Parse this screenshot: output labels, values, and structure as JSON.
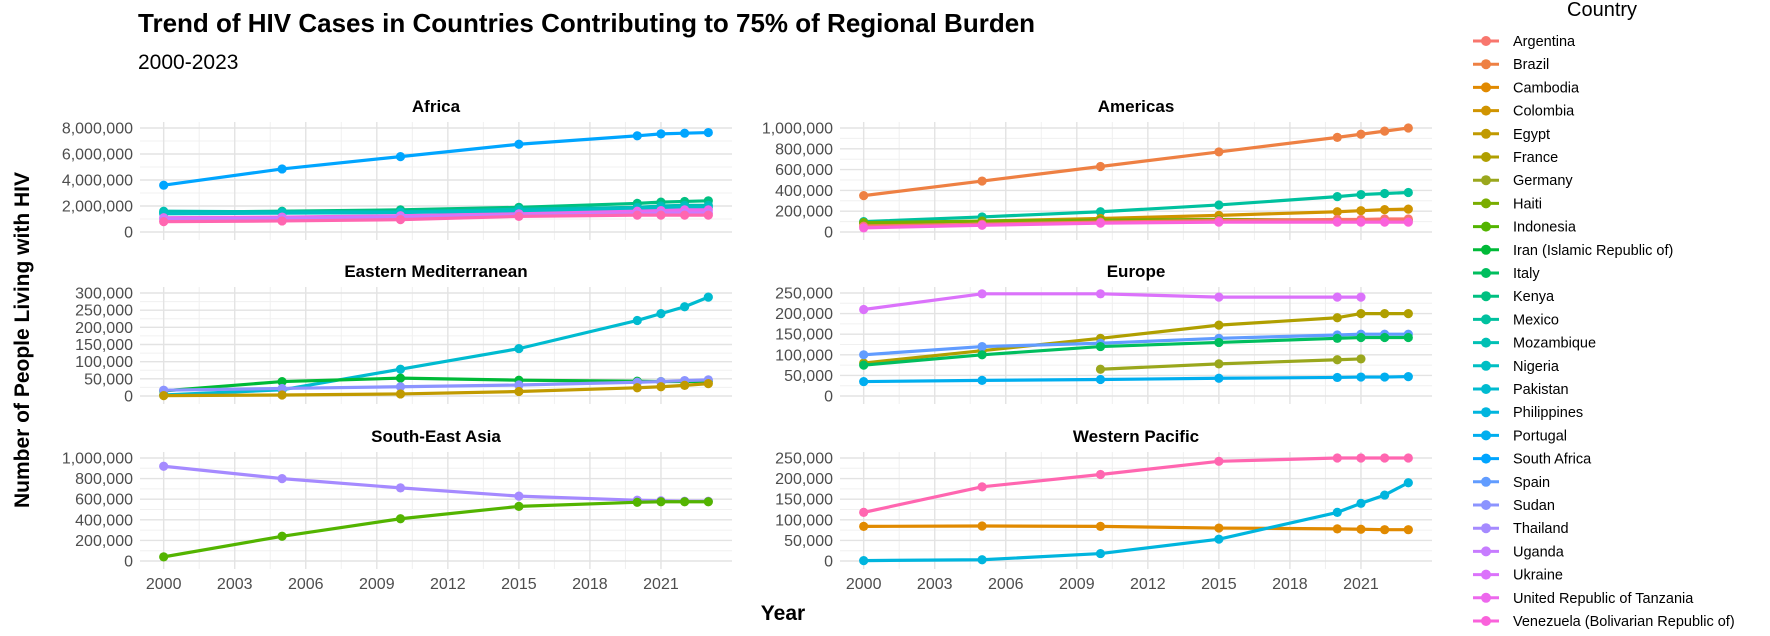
{
  "chart_data": {
    "type": "line",
    "title": "Trend of HIV Cases in Countries Contributing to 75% of Regional Burden",
    "subtitle": "2000-2023",
    "xlabel": "Year",
    "ylabel": "Number of People Living with HIV",
    "x_ticks": [
      2000,
      2003,
      2006,
      2009,
      2012,
      2015,
      2018,
      2021
    ],
    "legend": {
      "title": "Country",
      "placement": "right",
      "entries": [
        {
          "name": "Argentina",
          "color": "#F8766D"
        },
        {
          "name": "Brazil",
          "color": "#EE8043"
        },
        {
          "name": "Cambodia",
          "color": "#E18A00"
        },
        {
          "name": "Colombia",
          "color": "#D09400"
        },
        {
          "name": "Egypt",
          "color": "#C19A00"
        },
        {
          "name": "France",
          "color": "#B09F00"
        },
        {
          "name": "Germany",
          "color": "#9AA71D"
        },
        {
          "name": "Haiti",
          "color": "#7AAD00"
        },
        {
          "name": "Indonesia",
          "color": "#53B400"
        },
        {
          "name": "Iran (Islamic Republic of)",
          "color": "#00BA38"
        },
        {
          "name": "Italy",
          "color": "#00BE5E"
        },
        {
          "name": "Kenya",
          "color": "#00C081"
        },
        {
          "name": "Mexico",
          "color": "#00C19F"
        },
        {
          "name": "Mozambique",
          "color": "#00C0B4"
        },
        {
          "name": "Nigeria",
          "color": "#00BFC4"
        },
        {
          "name": "Pakistan",
          "color": "#00BBD0"
        },
        {
          "name": "Philippines",
          "color": "#00B5DE"
        },
        {
          "name": "Portugal",
          "color": "#00AEEF"
        },
        {
          "name": "South Africa",
          "color": "#00A5FF"
        },
        {
          "name": "Spain",
          "color": "#619CFF"
        },
        {
          "name": "Sudan",
          "color": "#8C94FF"
        },
        {
          "name": "Thailand",
          "color": "#A58AFF"
        },
        {
          "name": "Uganda",
          "color": "#C77CFF"
        },
        {
          "name": "Ukraine",
          "color": "#DB72FB"
        },
        {
          "name": "United Republic of Tanzania",
          "color": "#ED68ED"
        },
        {
          "name": "Venezuela (Bolivarian Republic of)",
          "color": "#FA62DB"
        }
      ]
    },
    "panels": [
      {
        "name": "Africa",
        "ylim": [
          0,
          8000000
        ],
        "y_ticks": [
          0,
          2000000,
          4000000,
          6000000,
          8000000
        ],
        "y_tick_labels": [
          "0",
          "2,000,000",
          "4,000,000",
          "6,000,000",
          "8,000,000"
        ],
        "series": [
          {
            "color": "#00A5FF",
            "x": [
              2000,
              2005,
              2010,
              2015,
              2020,
              2021,
              2022,
              2023
            ],
            "y": [
              3600000,
              4850000,
              5800000,
              6750000,
              7400000,
              7550000,
              7600000,
              7650000
            ]
          },
          {
            "color": "#00C081",
            "x": [
              2000,
              2005,
              2010,
              2015,
              2020,
              2021,
              2022,
              2023
            ],
            "y": [
              1500000,
              1600000,
              1700000,
              1900000,
              2200000,
              2300000,
              2350000,
              2400000
            ]
          },
          {
            "color": "#00C0B4",
            "x": [
              2000,
              2005,
              2010,
              2015,
              2020,
              2021,
              2022,
              2023
            ],
            "y": [
              1600000,
              1550000,
              1550000,
              1750000,
              1900000,
              2000000,
              2050000,
              2050000
            ]
          },
          {
            "color": "#00BFC4",
            "x": [
              2000,
              2005,
              2010,
              2015,
              2020,
              2021,
              2022,
              2023
            ],
            "y": [
              1400000,
              1450000,
              1500000,
              1600000,
              1800000,
              1850000,
              1900000,
              1900000
            ]
          },
          {
            "color": "#ED68ED",
            "x": [
              2000,
              2005,
              2010,
              2015,
              2020,
              2021,
              2022,
              2023
            ],
            "y": [
              1100000,
              1150000,
              1250000,
              1400000,
              1600000,
              1650000,
              1700000,
              1700000
            ]
          },
          {
            "color": "#C77CFF",
            "x": [
              2000,
              2005,
              2010,
              2015,
              2020,
              2021,
              2022,
              2023
            ],
            "y": [
              1000000,
              1050000,
              1150000,
              1300000,
              1400000,
              1450000,
              1450000,
              1450000
            ]
          },
          {
            "color": "#FF66B0",
            "x": [
              2000,
              2005,
              2010,
              2015,
              2020,
              2021,
              2022,
              2023
            ],
            "y": [
              800000,
              850000,
              950000,
              1200000,
              1300000,
              1300000,
              1300000,
              1300000
            ]
          }
        ]
      },
      {
        "name": "Americas",
        "ylim": [
          0,
          1000000
        ],
        "y_ticks": [
          0,
          200000,
          400000,
          600000,
          800000,
          1000000
        ],
        "y_tick_labels": [
          "0",
          "200,000",
          "400,000",
          "600,000",
          "800,000",
          "1,000,000"
        ],
        "series": [
          {
            "color": "#EE8043",
            "x": [
              2000,
              2005,
              2010,
              2015,
              2020,
              2021,
              2022,
              2023
            ],
            "y": [
              350000,
              490000,
              630000,
              770000,
              910000,
              940000,
              970000,
              1000000
            ]
          },
          {
            "color": "#00C19F",
            "x": [
              2000,
              2005,
              2010,
              2015,
              2020,
              2021,
              2022,
              2023
            ],
            "y": [
              100000,
              145000,
              195000,
              260000,
              340000,
              360000,
              370000,
              380000
            ]
          },
          {
            "color": "#D09400",
            "x": [
              2000,
              2005,
              2010,
              2015,
              2020,
              2021,
              2022,
              2023
            ],
            "y": [
              80000,
              105000,
              130000,
              160000,
              195000,
              205000,
              215000,
              220000
            ]
          },
          {
            "color": "#7AAD00",
            "x": [
              2000,
              2005,
              2010,
              2015,
              2020,
              2021,
              2022,
              2023
            ],
            "y": [
              90000,
              105000,
              115000,
              120000,
              115000,
              115000,
              115000,
              115000
            ]
          },
          {
            "color": "#F8766D",
            "x": [
              2000,
              2005,
              2010,
              2015,
              2020,
              2021,
              2022,
              2023
            ],
            "y": [
              55000,
              75000,
              95000,
              110000,
              120000,
              120000,
              125000,
              125000
            ]
          },
          {
            "color": "#FA62DB",
            "x": [
              2000,
              2005,
              2010,
              2015,
              2020,
              2021,
              2022,
              2023
            ],
            "y": [
              40000,
              65000,
              85000,
              95000,
              95000,
              95000,
              95000,
              95000
            ]
          }
        ]
      },
      {
        "name": "Eastern Mediterranean",
        "ylim": [
          0,
          300000
        ],
        "y_ticks": [
          0,
          50000,
          100000,
          150000,
          200000,
          250000,
          300000
        ],
        "y_tick_labels": [
          "0",
          "50,000",
          "100,000",
          "150,000",
          "200,000",
          "250,000",
          "300,000"
        ],
        "series": [
          {
            "color": "#00BBD0",
            "x": [
              2000,
              2005,
              2010,
              2015,
              2020,
              2021,
              2022,
              2023
            ],
            "y": [
              3000,
              18000,
              78000,
              138000,
              220000,
              240000,
              260000,
              288000
            ]
          },
          {
            "color": "#00BA38",
            "x": [
              2000,
              2005,
              2010,
              2015,
              2020,
              2021,
              2022,
              2023
            ],
            "y": [
              15000,
              42000,
              52000,
              46000,
              43000,
              42000,
              42000,
              43000
            ]
          },
          {
            "color": "#8C94FF",
            "x": [
              2000,
              2005,
              2010,
              2015,
              2020,
              2021,
              2022,
              2023
            ],
            "y": [
              17000,
              22000,
              27000,
              32000,
              40000,
              42000,
              45000,
              47000
            ]
          },
          {
            "color": "#C19A00",
            "x": [
              2000,
              2005,
              2010,
              2015,
              2020,
              2021,
              2022,
              2023
            ],
            "y": [
              1000,
              3000,
              6000,
              13000,
              24000,
              27000,
              31000,
              36000
            ]
          }
        ]
      },
      {
        "name": "Europe",
        "ylim": [
          0,
          250000
        ],
        "y_ticks": [
          0,
          50000,
          100000,
          150000,
          200000,
          250000
        ],
        "y_tick_labels": [
          "0",
          "50,000",
          "100,000",
          "150,000",
          "200,000",
          "250,000"
        ],
        "series": [
          {
            "color": "#DB72FB",
            "x": [
              2000,
              2005,
              2010,
              2015,
              2020,
              2021
            ],
            "y": [
              210000,
              248000,
              248000,
              240000,
              240000,
              240000
            ]
          },
          {
            "color": "#B09F00",
            "x": [
              2000,
              2005,
              2010,
              2015,
              2020,
              2021,
              2022,
              2023
            ],
            "y": [
              80000,
              110000,
              140000,
              172000,
              190000,
              200000,
              200000,
              200000
            ]
          },
          {
            "color": "#619CFF",
            "x": [
              2000,
              2005,
              2010,
              2015,
              2020,
              2021,
              2022,
              2023
            ],
            "y": [
              100000,
              120000,
              128000,
              140000,
              148000,
              150000,
              150000,
              150000
            ]
          },
          {
            "color": "#00BE5E",
            "x": [
              2000,
              2005,
              2010,
              2015,
              2020,
              2021,
              2022,
              2023
            ],
            "y": [
              75000,
              100000,
              120000,
              130000,
              140000,
              142000,
              142000,
              142000
            ]
          },
          {
            "color": "#9AA71D",
            "x": [
              2010,
              2015,
              2020,
              2021
            ],
            "y": [
              65000,
              78000,
              88000,
              90000
            ]
          },
          {
            "color": "#00AEEF",
            "x": [
              2000,
              2005,
              2010,
              2015,
              2020,
              2021,
              2022,
              2023
            ],
            "y": [
              35000,
              38000,
              40000,
              43000,
              45000,
              46000,
              46000,
              47000
            ]
          }
        ]
      },
      {
        "name": "South-East Asia",
        "ylim": [
          0,
          1000000
        ],
        "y_ticks": [
          0,
          200000,
          400000,
          600000,
          800000,
          1000000
        ],
        "y_tick_labels": [
          "0",
          "200,000",
          "400,000",
          "600,000",
          "800,000",
          "1,000,000"
        ],
        "series": [
          {
            "color": "#A58AFF",
            "x": [
              2000,
              2005,
              2010,
              2015,
              2020,
              2021,
              2022,
              2023
            ],
            "y": [
              920000,
              800000,
              710000,
              630000,
              590000,
              585000,
              580000,
              580000
            ]
          },
          {
            "color": "#53B400",
            "x": [
              2000,
              2005,
              2010,
              2015,
              2020,
              2021,
              2022,
              2023
            ],
            "y": [
              40000,
              240000,
              410000,
              530000,
              570000,
              575000,
              575000,
              575000
            ]
          }
        ]
      },
      {
        "name": "Western Pacific",
        "ylim": [
          0,
          250000
        ],
        "y_ticks": [
          0,
          50000,
          100000,
          150000,
          200000,
          250000
        ],
        "y_tick_labels": [
          "0",
          "50,000",
          "100,000",
          "150,000",
          "200,000",
          "250,000"
        ],
        "series": [
          {
            "color": "#FF66B0",
            "x": [
              2000,
              2005,
              2010,
              2015,
              2020,
              2021,
              2022,
              2023
            ],
            "y": [
              118000,
              180000,
              210000,
              242000,
              250000,
              250000,
              250000,
              250000
            ]
          },
          {
            "color": "#E18A00",
            "x": [
              2000,
              2005,
              2010,
              2015,
              2020,
              2021,
              2022,
              2023
            ],
            "y": [
              84000,
              85000,
              84000,
              80000,
              78000,
              77000,
              76000,
              76000
            ]
          },
          {
            "color": "#00B5DE",
            "x": [
              2000,
              2005,
              2010,
              2015,
              2020,
              2021,
              2022,
              2023
            ],
            "y": [
              1000,
              3000,
              18000,
              53000,
              118000,
              140000,
              160000,
              190000
            ]
          }
        ]
      }
    ]
  }
}
